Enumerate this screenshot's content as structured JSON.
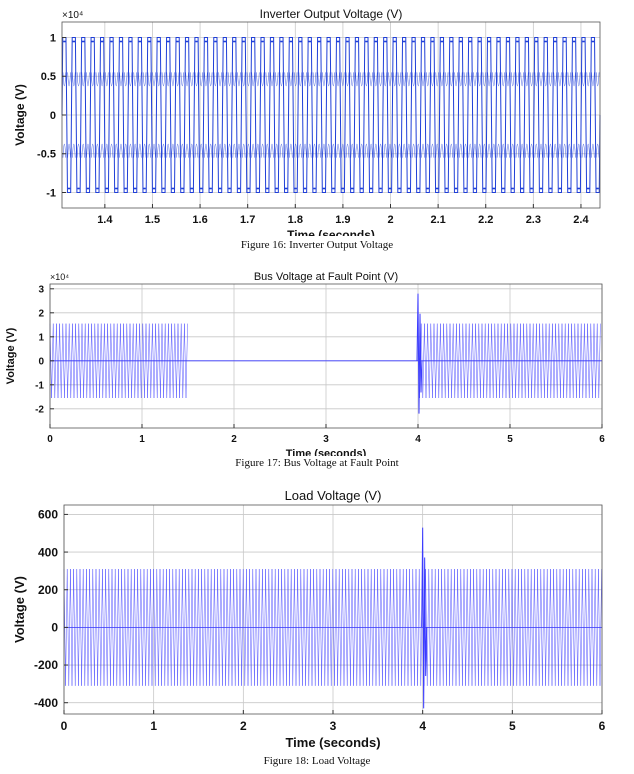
{
  "chart_data": [
    {
      "type": "line",
      "title": "Inverter Output Voltage (V)",
      "xlabel": "Time (seconds)",
      "ylabel": "Voltage (V)",
      "y_multiplier": "×10⁴",
      "xlim": [
        1.31,
        2.44
      ],
      "ylim": [
        -1.2,
        1.2
      ],
      "xticks": [
        1.4,
        1.5,
        1.6,
        1.7,
        1.8,
        1.9,
        2,
        2.1,
        2.2,
        2.3,
        2.4
      ],
      "yticks": [
        -1,
        -0.5,
        0,
        0.5,
        1
      ],
      "grid": true,
      "series": [
        {
          "color": "#1f3fd8",
          "kind": "pwm",
          "amplitude": 1.0,
          "cycles_visible": 57,
          "description_points": [
            [
              1.31,
              0
            ],
            [
              2.44,
              0
            ]
          ]
        }
      ],
      "caption": "Figure 16: Inverter Output Voltage"
    },
    {
      "type": "line",
      "title": "Bus Voltage at Fault Point (V)",
      "xlabel": "Time (seconds)",
      "ylabel": "Voltage (V)",
      "y_multiplier": "×10⁴",
      "xlim": [
        0,
        6
      ],
      "ylim": [
        -2.8,
        3.2
      ],
      "xticks": [
        0,
        1,
        2,
        3,
        4,
        5,
        6
      ],
      "yticks": [
        -2,
        -1,
        0,
        1,
        2,
        3
      ],
      "grid": true,
      "series": [
        {
          "color": "#3b3bff",
          "kind": "sine-envelope",
          "segments": [
            {
              "x_start": 0,
              "x_end": 1.5,
              "amplitude": 1.55
            },
            {
              "x_start": 1.5,
              "x_end": 4.0,
              "amplitude": 0
            },
            {
              "x_start": 4.0,
              "x_end": 6.0,
              "amplitude": 1.55
            }
          ],
          "transient": {
            "x": 4.0,
            "peak": 2.8,
            "trough": -2.2
          }
        }
      ],
      "caption": "Figure 17: Bus Voltage at Fault Point"
    },
    {
      "type": "line",
      "title": "Load Voltage (V)",
      "xlabel": "Time (seconds)",
      "ylabel": "Voltage (V)",
      "xlim": [
        0,
        6
      ],
      "ylim": [
        -460,
        650
      ],
      "xticks": [
        0,
        1,
        2,
        3,
        4,
        5,
        6
      ],
      "yticks": [
        -400,
        -200,
        0,
        200,
        400,
        600
      ],
      "grid": true,
      "series": [
        {
          "color": "#3b3bff",
          "kind": "sine-envelope",
          "segments": [
            {
              "x_start": 0,
              "x_end": 6,
              "amplitude": 310
            }
          ],
          "transient": {
            "x": 4.0,
            "peak": 530,
            "trough": -430
          }
        }
      ],
      "caption": "Figure 18: Load Voltage"
    }
  ]
}
